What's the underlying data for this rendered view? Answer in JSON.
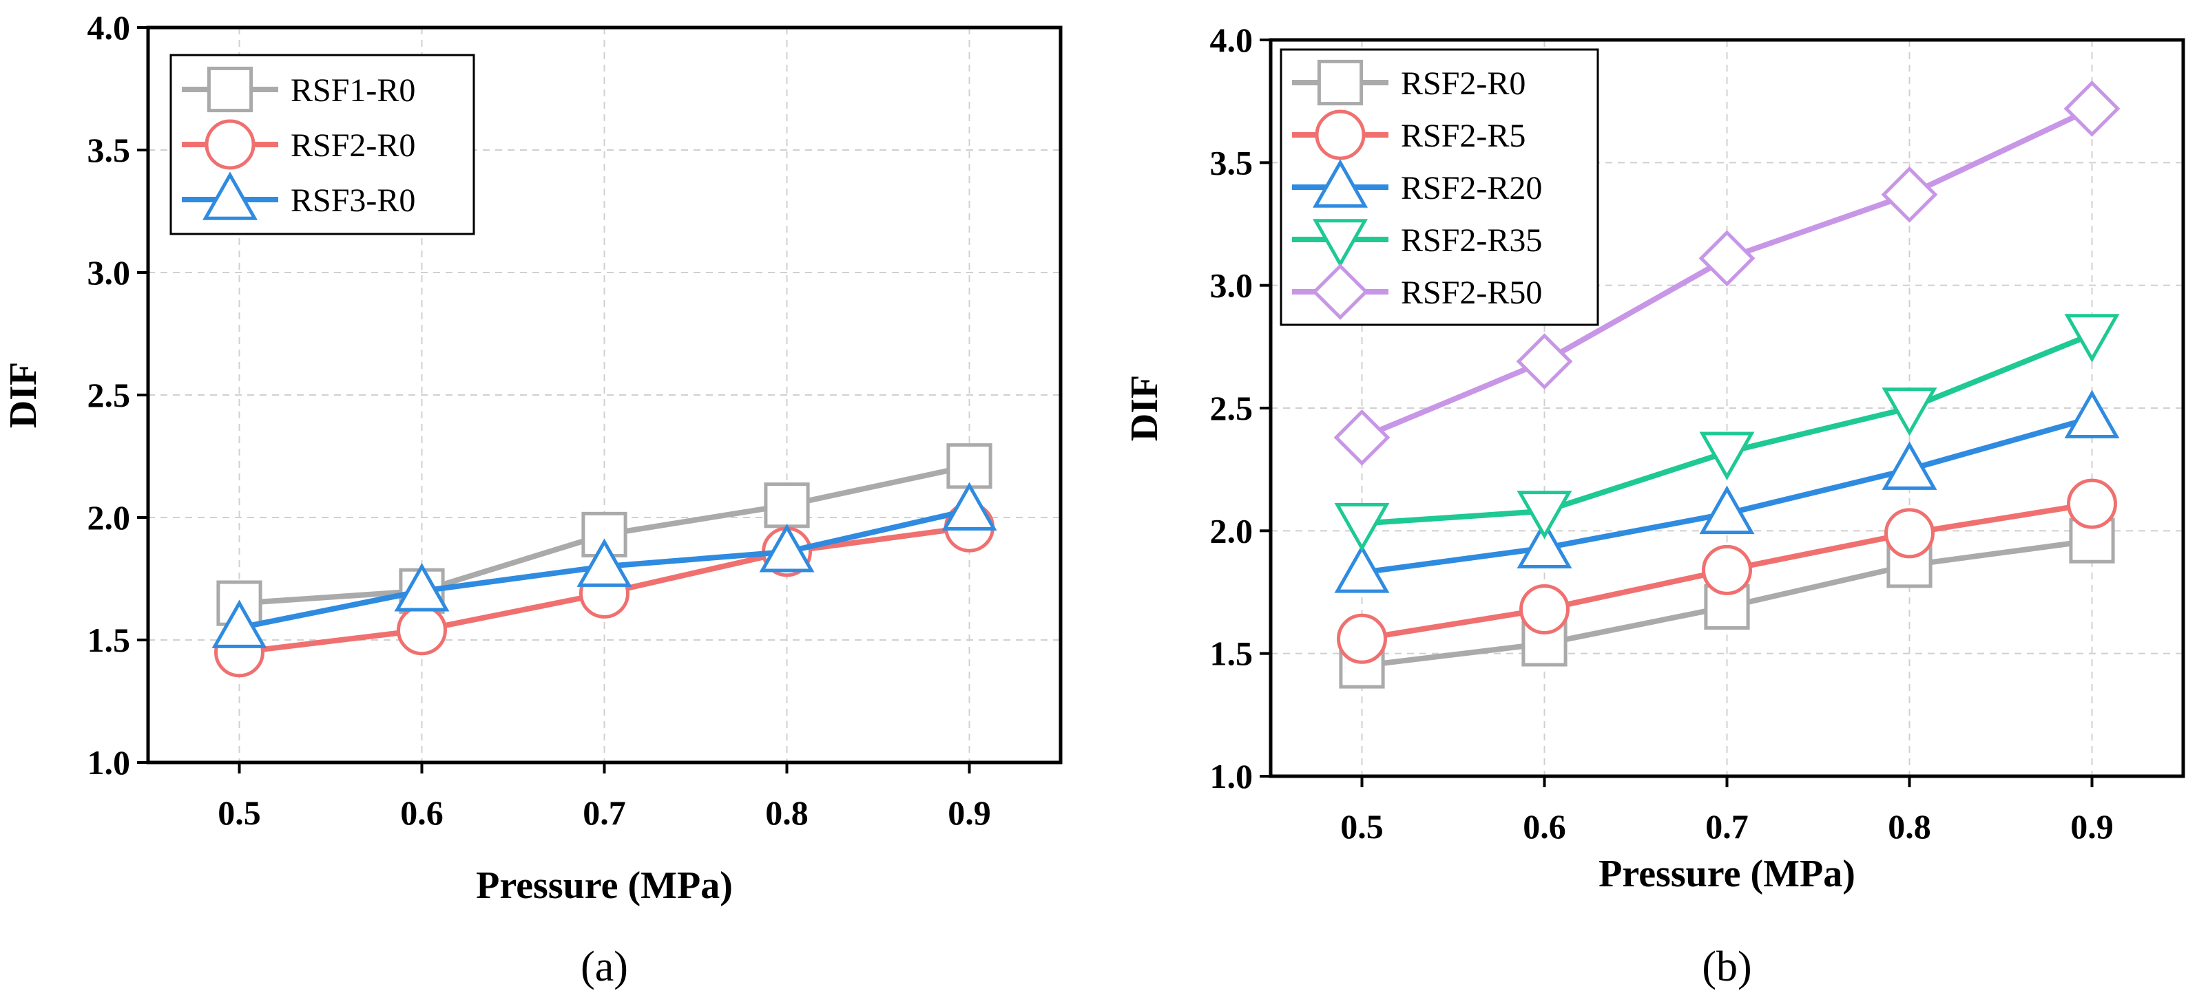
{
  "chart_data": [
    {
      "type": "line",
      "caption": "(a)",
      "xlabel": "Pressure (MPa)",
      "ylabel": "DIF",
      "x": [
        0.5,
        0.6,
        0.7,
        0.8,
        0.9
      ],
      "x_ticks": [
        "0.5",
        "0.6",
        "0.7",
        "0.8",
        "0.9"
      ],
      "y_ticks": [
        "1.0",
        "1.5",
        "2.0",
        "2.5",
        "3.0",
        "3.5",
        "4.0"
      ],
      "xlim": [
        0.45,
        0.95
      ],
      "ylim": [
        1.0,
        4.0
      ],
      "grid": true,
      "legend_position": "top-left",
      "series": [
        {
          "name": "RSF1-R0",
          "values": [
            1.65,
            1.7,
            1.93,
            2.05,
            2.21
          ],
          "marker": "square",
          "color": "#aaaaaa"
        },
        {
          "name": "RSF2-R0",
          "values": [
            1.45,
            1.54,
            1.69,
            1.86,
            1.96
          ],
          "marker": "circle",
          "color": "#f07070"
        },
        {
          "name": "RSF3-R0",
          "values": [
            1.55,
            1.7,
            1.8,
            1.86,
            2.03
          ],
          "marker": "triangle-up",
          "color": "#2f8be0"
        }
      ]
    },
    {
      "type": "line",
      "caption": "(b)",
      "xlabel": "Pressure (MPa)",
      "ylabel": "DIF",
      "x": [
        0.5,
        0.6,
        0.7,
        0.8,
        0.9
      ],
      "x_ticks": [
        "0.5",
        "0.6",
        "0.7",
        "0.8",
        "0.9"
      ],
      "y_ticks": [
        "1.0",
        "1.5",
        "2.0",
        "2.5",
        "3.0",
        "3.5",
        "4.0"
      ],
      "xlim": [
        0.45,
        0.95
      ],
      "ylim": [
        1.0,
        4.0
      ],
      "grid": true,
      "legend_position": "top-left",
      "series": [
        {
          "name": "RSF2-R0",
          "values": [
            1.45,
            1.54,
            1.69,
            1.86,
            1.96
          ],
          "marker": "square",
          "color": "#aaaaaa"
        },
        {
          "name": "RSF2-R5",
          "values": [
            1.56,
            1.68,
            1.84,
            1.99,
            2.11
          ],
          "marker": "circle",
          "color": "#f07070"
        },
        {
          "name": "RSF2-R20",
          "values": [
            1.83,
            1.93,
            2.07,
            2.25,
            2.46
          ],
          "marker": "triangle-up",
          "color": "#2f8be0"
        },
        {
          "name": "RSF2-R35",
          "values": [
            2.03,
            2.08,
            2.32,
            2.5,
            2.8
          ],
          "marker": "triangle-down",
          "color": "#1ec993"
        },
        {
          "name": "RSF2-R50",
          "values": [
            2.38,
            2.69,
            3.11,
            3.37,
            3.72
          ],
          "marker": "diamond",
          "color": "#c896e6"
        }
      ]
    }
  ]
}
